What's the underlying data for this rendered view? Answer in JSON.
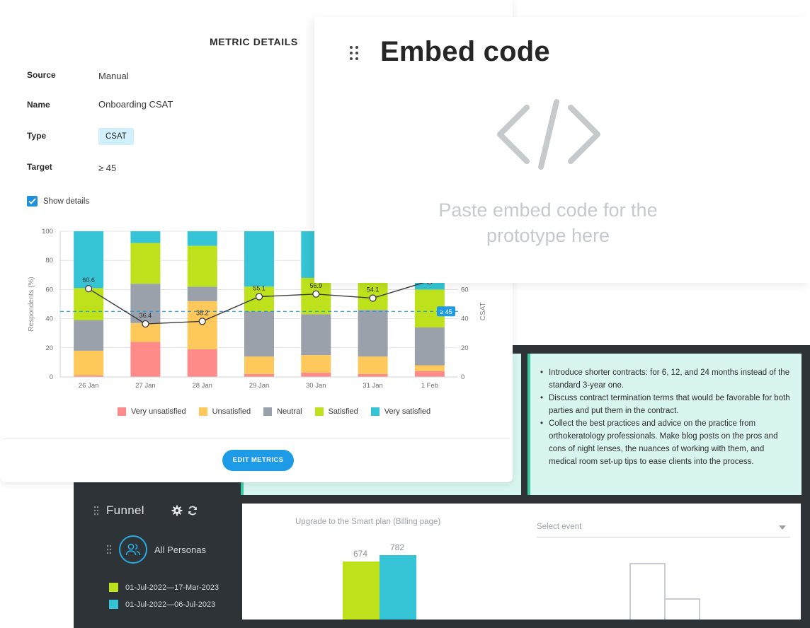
{
  "metric_details": {
    "title": "METRIC DETAILS",
    "source_label": "Source",
    "source_value": "Manual",
    "name_label": "Name",
    "name_value": "Onboarding CSAT",
    "type_label": "Type",
    "type_value": "CSAT",
    "target_label": "Target",
    "target_value": "≥ 45",
    "show_details_label": "Show details",
    "show_details_checked": true,
    "edit_button_label": "EDIT METRICS"
  },
  "chart_data": {
    "type": "bar",
    "stacked": true,
    "categories": [
      "26 Jan",
      "27 Jan",
      "28 Jan",
      "29 Jan",
      "30 Jan",
      "31 Jan",
      "1 Feb"
    ],
    "ylabel": "Respondents (%)",
    "y2label": "CSAT",
    "ylim": [
      0,
      100
    ],
    "yticks": [
      0,
      20,
      40,
      60,
      80,
      100
    ],
    "y2ticks": [
      0,
      20,
      40,
      60
    ],
    "series": [
      {
        "name": "Very unsatisfied",
        "color": "#ff8a8a",
        "values": [
          1,
          24,
          19,
          2,
          3,
          2,
          4
        ]
      },
      {
        "name": "Unsatisfied",
        "color": "#ffc85a",
        "values": [
          17,
          13,
          33,
          12,
          12,
          12,
          4
        ]
      },
      {
        "name": "Neutral",
        "color": "#9aa1aa",
        "values": [
          21,
          27,
          10,
          31,
          28,
          32,
          26
        ]
      },
      {
        "name": "Satisfied",
        "color": "#bde21c",
        "values": [
          22,
          28,
          28,
          17,
          25,
          20,
          26
        ]
      },
      {
        "name": "Very satisfied",
        "color": "#35c4d6",
        "values": [
          39,
          8,
          10,
          38,
          32,
          34,
          40
        ]
      }
    ],
    "csat_line": {
      "values": [
        60.6,
        36.4,
        38.2,
        55.1,
        56.9,
        54.1,
        66
      ],
      "labels": [
        "60.6",
        "36.4",
        "38.2",
        "55.1",
        "56.9",
        "54.1",
        ""
      ]
    },
    "target_line": {
      "value": 45,
      "label": "≥ 45",
      "color": "#1e9be6"
    },
    "grid": true,
    "legend_position": "bottom"
  },
  "embed": {
    "title": "Embed code",
    "hint": "Paste embed code for the prototype here",
    "icon": "code-brackets-icon"
  },
  "notes": {
    "items": [
      "Introduce shorter contracts: for 6, 12, and 24 months instead of the standard 3-year one.",
      "Discuss contract termination terms that would be favorable for both parties and put them in the contract.",
      "Collect the best practices and advice on the practice from orthokeratology professionals. Make blog posts on the pros and cons of night lenses, the nuances of working with them, and medical room set-up tips to ease clients into the process."
    ]
  },
  "funnel": {
    "title": "Funnel",
    "persona_label": "All Personas",
    "chart_title": "Upgrade to the Smart plan (Billing page)",
    "select_placeholder": "Select event",
    "ranges": [
      {
        "label": "01-Jul-2022—17-Mar-2023",
        "color": "#bde21c"
      },
      {
        "label": "01-Jul-2022—06-Jul-2023",
        "color": "#35c4d6"
      }
    ],
    "values": [
      "674",
      "782"
    ]
  }
}
